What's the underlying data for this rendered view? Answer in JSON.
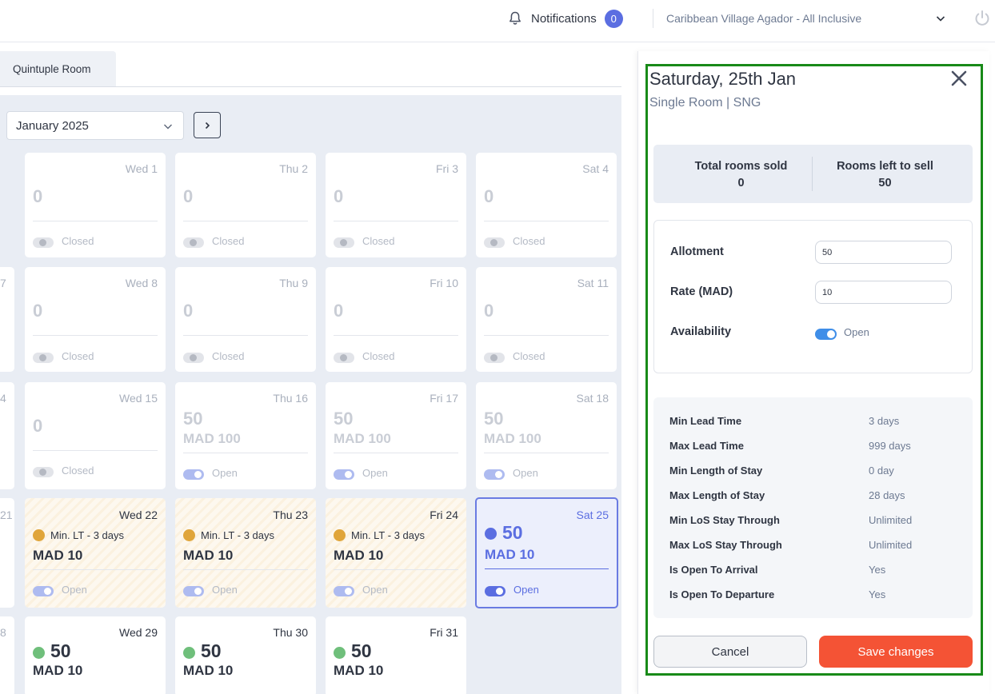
{
  "header": {
    "notifications_label": "Notifications",
    "notifications_count": "0",
    "hotel_name": "Caribbean Village Agador - All Inclusive"
  },
  "tabs": [
    {
      "label": "Quintuple Room"
    }
  ],
  "calendar": {
    "month": "January 2025",
    "edge_days": [
      "7",
      "4",
      "21",
      "8"
    ],
    "cells": [
      {
        "day": "Wed 1",
        "value": "0",
        "status": "Closed"
      },
      {
        "day": "Thu 2",
        "value": "0",
        "status": "Closed"
      },
      {
        "day": "Fri 3",
        "value": "0",
        "status": "Closed"
      },
      {
        "day": "Sat 4",
        "value": "0",
        "status": "Closed"
      },
      {
        "day": "Wed 8",
        "value": "0",
        "status": "Closed"
      },
      {
        "day": "Thu 9",
        "value": "0",
        "status": "Closed"
      },
      {
        "day": "Fri 10",
        "value": "0",
        "status": "Closed"
      },
      {
        "day": "Sat 11",
        "value": "0",
        "status": "Closed"
      },
      {
        "day": "Wed 15",
        "value": "0",
        "status": "Closed"
      },
      {
        "day": "Thu 16",
        "value": "50",
        "rate": "MAD 100",
        "status": "Open"
      },
      {
        "day": "Fri 17",
        "value": "50",
        "rate": "MAD 100",
        "status": "Open"
      },
      {
        "day": "Sat 18",
        "value": "50",
        "rate": "MAD 100",
        "status": "Open"
      },
      {
        "day": "Wed 22",
        "note": "Min. LT - 3 days",
        "rate": "MAD 10",
        "status": "Open"
      },
      {
        "day": "Thu 23",
        "note": "Min. LT - 3 days",
        "rate": "MAD 10",
        "status": "Open"
      },
      {
        "day": "Fri 24",
        "note": "Min. LT - 3 days",
        "rate": "MAD 10",
        "status": "Open"
      },
      {
        "day": "Sat 25",
        "value": "50",
        "rate": "MAD 10",
        "status": "Open"
      },
      {
        "day": "Wed 29",
        "value": "50",
        "rate": "MAD 10"
      },
      {
        "day": "Thu 30",
        "value": "50",
        "rate": "MAD 10"
      },
      {
        "day": "Fri 31",
        "value": "50",
        "rate": "MAD 10"
      }
    ]
  },
  "colors": {
    "accent": "#5b6ee1",
    "warning_dot": "#e0a53a",
    "success_dot": "#6fbf7b",
    "save": "#f45335"
  },
  "panel": {
    "title": "Saturday, 25th Jan",
    "subtitle": "Single Room | SNG",
    "stats": {
      "sold_label": "Total rooms sold",
      "sold_value": "0",
      "left_label": "Rooms left to sell",
      "left_value": "50"
    },
    "form": {
      "allotment_label": "Allotment",
      "allotment_value": "50",
      "rate_label": "Rate (MAD)",
      "rate_value": "10",
      "availability_label": "Availability",
      "availability_value": "Open"
    },
    "rules": [
      {
        "k": "Min Lead Time",
        "v": "3 days"
      },
      {
        "k": "Max Lead Time",
        "v": "999 days"
      },
      {
        "k": "Min Length of Stay",
        "v": "0 day"
      },
      {
        "k": "Max Length of Stay",
        "v": "28 days"
      },
      {
        "k": "Min LoS Stay Through",
        "v": "Unlimited"
      },
      {
        "k": "Max LoS Stay Through",
        "v": "Unlimited"
      },
      {
        "k": "Is Open To Arrival",
        "v": "Yes"
      },
      {
        "k": "Is Open To Departure",
        "v": "Yes"
      }
    ],
    "cancel_label": "Cancel",
    "save_label": "Save changes"
  }
}
